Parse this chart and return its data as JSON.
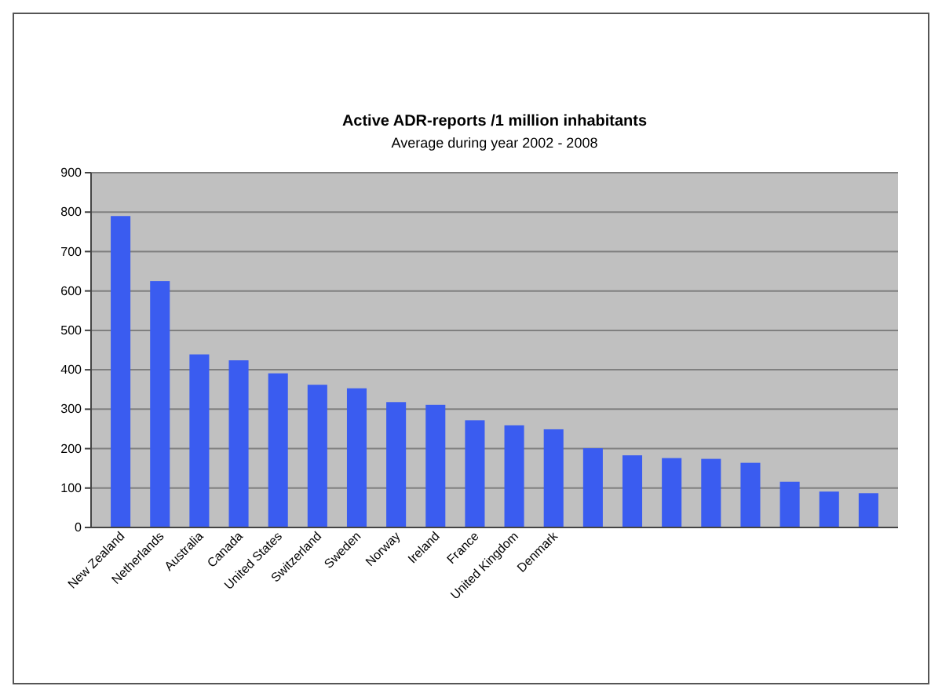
{
  "chart_data": {
    "type": "bar",
    "title": "Active ADR-reports /1 million inhabitants",
    "subtitle": "Average during year 2002 - 2008",
    "categories": [
      "New Zealand",
      "Netherlands",
      "Australia",
      "Canada",
      "United States",
      "Switzerland",
      "Sweden",
      "Norway",
      "Ireland",
      "France",
      "United Kingdom",
      "Denmark",
      null,
      null,
      null,
      null,
      null,
      null,
      null,
      null
    ],
    "values": [
      790,
      625,
      439,
      424,
      391,
      362,
      353,
      318,
      311,
      272,
      259,
      249,
      201,
      183,
      176,
      174,
      164,
      116,
      91,
      87
    ],
    "color": "#3a5cf0",
    "ylim": [
      0,
      900
    ],
    "yticks": [
      0,
      100,
      200,
      300,
      400,
      500,
      600,
      700,
      800,
      900
    ],
    "grid": "y"
  }
}
